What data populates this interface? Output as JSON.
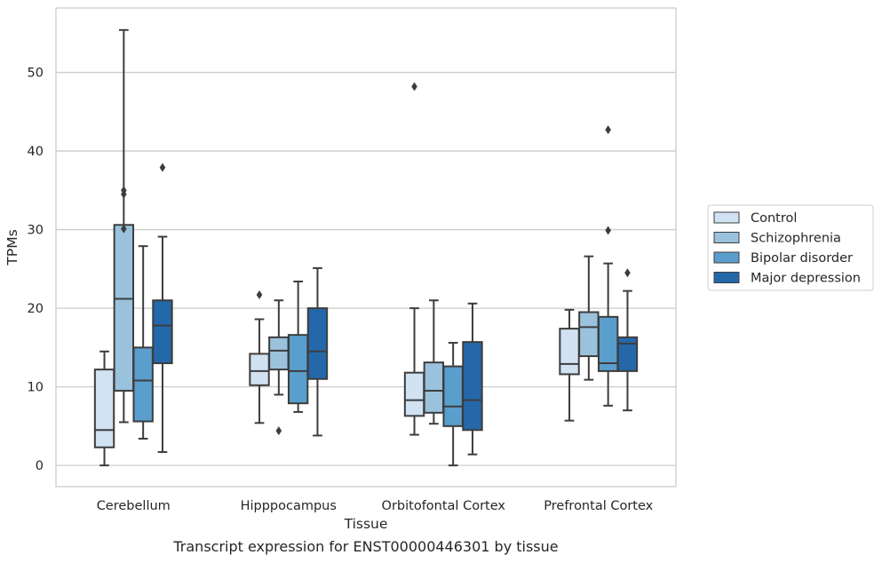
{
  "chart_data": {
    "type": "boxplot",
    "title": "",
    "caption": "Transcript expression for ENST00000446301 by tissue",
    "xlabel": "Tissue",
    "ylabel": "TPMs",
    "ylim": [
      -2.7,
      58.2
    ],
    "yticks": [
      0,
      10,
      20,
      30,
      40,
      50
    ],
    "grid": true,
    "legend_position": "right",
    "categories": [
      "Cerebellum",
      "Hipppocampus",
      "Orbitofontal Cortex",
      "Prefrontal Cortex"
    ],
    "series": [
      {
        "name": "Control",
        "color": "#d1e2f2",
        "boxes": [
          {
            "whislo": 0.0,
            "q1": 2.3,
            "med": 4.5,
            "q3": 12.2,
            "whishi": 14.5,
            "fliers": []
          },
          {
            "whislo": 5.4,
            "q1": 10.2,
            "med": 12.0,
            "q3": 14.2,
            "whishi": 18.6,
            "fliers": [
              21.7
            ]
          },
          {
            "whislo": 3.9,
            "q1": 6.3,
            "med": 8.3,
            "q3": 11.8,
            "whishi": 20.0,
            "fliers": [
              48.2
            ]
          },
          {
            "whislo": 5.7,
            "q1": 11.6,
            "med": 12.9,
            "q3": 17.4,
            "whishi": 19.8,
            "fliers": []
          }
        ]
      },
      {
        "name": "Schizophrenia",
        "color": "#9ac2dd",
        "boxes": [
          {
            "whislo": 5.5,
            "q1": 9.5,
            "med": 21.2,
            "q3": 30.6,
            "whishi": 55.4,
            "fliers": [
              30.1,
              34.5,
              35.0
            ]
          },
          {
            "whislo": 9.0,
            "q1": 12.2,
            "med": 14.6,
            "q3": 16.3,
            "whishi": 21.0,
            "fliers": [
              4.4
            ]
          },
          {
            "whislo": 5.3,
            "q1": 6.7,
            "med": 9.5,
            "q3": 13.1,
            "whishi": 21.0,
            "fliers": []
          },
          {
            "whislo": 10.9,
            "q1": 13.9,
            "med": 17.6,
            "q3": 19.5,
            "whishi": 26.6,
            "fliers": []
          }
        ]
      },
      {
        "name": "Bipolar disorder",
        "color": "#5a9ecd",
        "boxes": [
          {
            "whislo": 3.4,
            "q1": 5.6,
            "med": 10.8,
            "q3": 15.0,
            "whishi": 27.9,
            "fliers": []
          },
          {
            "whislo": 6.8,
            "q1": 7.9,
            "med": 12.0,
            "q3": 16.6,
            "whishi": 23.4,
            "fliers": []
          },
          {
            "whislo": 0.0,
            "q1": 5.0,
            "med": 7.5,
            "q3": 12.6,
            "whishi": 15.6,
            "fliers": []
          },
          {
            "whislo": 7.6,
            "q1": 12.0,
            "med": 13.0,
            "q3": 18.9,
            "whishi": 25.7,
            "fliers": [
              29.9,
              42.7
            ]
          }
        ]
      },
      {
        "name": "Major depression",
        "color": "#2468aa",
        "boxes": [
          {
            "whislo": 1.7,
            "q1": 13.0,
            "med": 17.8,
            "q3": 21.0,
            "whishi": 29.1,
            "fliers": [
              37.9
            ]
          },
          {
            "whislo": 3.8,
            "q1": 11.0,
            "med": 14.5,
            "q3": 20.0,
            "whishi": 25.1,
            "fliers": []
          },
          {
            "whislo": 1.4,
            "q1": 4.5,
            "med": 8.3,
            "q3": 15.7,
            "whishi": 20.6,
            "fliers": []
          },
          {
            "whislo": 7.0,
            "q1": 12.0,
            "med": 15.5,
            "q3": 16.3,
            "whishi": 22.2,
            "fliers": [
              24.5
            ]
          }
        ]
      }
    ]
  }
}
